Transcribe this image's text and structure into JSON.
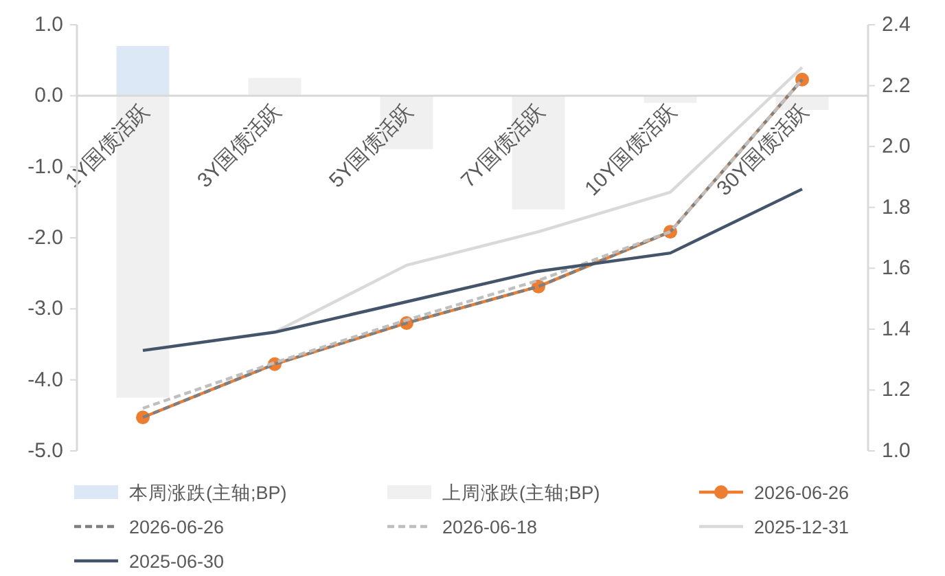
{
  "chart_data": {
    "type": "bar",
    "categories": [
      "1Y国债活跃",
      "3Y国债活跃",
      "5Y国债活跃",
      "7Y国债活跃",
      "10Y国债活跃",
      "30Y国债活跃"
    ],
    "ylim": [
      -5,
      1
    ],
    "yticks": [
      {
        "value": -5,
        "label": "-5.0"
      },
      {
        "value": -4,
        "label": "-4.0"
      },
      {
        "value": -3,
        "label": "-3.0"
      },
      {
        "value": -2,
        "label": "-2.0"
      },
      {
        "value": -1,
        "label": "-1.0"
      },
      {
        "value": 0,
        "label": "0.0"
      },
      {
        "value": 1,
        "label": "1.0"
      }
    ],
    "y2lim": [
      1,
      2.4
    ],
    "y2ticks": [
      {
        "value": 1,
        "label": "1.0"
      },
      {
        "value": 1.2,
        "label": "1.2"
      },
      {
        "value": 1.4,
        "label": "1.4"
      },
      {
        "value": 1.6,
        "label": "1.6"
      },
      {
        "value": 1.8,
        "label": "1.8"
      },
      {
        "value": 2,
        "label": "2.0"
      },
      {
        "value": 2.2,
        "label": "2.2"
      },
      {
        "value": 2.4,
        "label": "2.4"
      }
    ],
    "grid": false,
    "legend": "bottom",
    "series": [
      {
        "name": "本周涨跌(主轴;BP)",
        "color": "#dce8f5",
        "values": [
          0.7,
          0,
          0,
          0,
          0,
          0
        ]
      },
      {
        "name": "上周涨跌(主轴;BP)",
        "color": "#f0f0f0",
        "values": [
          -4.25,
          0.25,
          -0.75,
          -1.6,
          -0.1,
          -0.2
        ]
      },
      {
        "name": "2026-06-26",
        "type": "line",
        "axis": "y2",
        "color": "#ed7d31",
        "line_style": "solid",
        "marker": "circle",
        "values": [
          1.11,
          1.285,
          1.42,
          1.54,
          1.72,
          2.22
        ]
      },
      {
        "name": "2026-06-26",
        "type": "line",
        "axis": "y2",
        "color": "#7f7f7f",
        "line_style": "dashed",
        "marker": "none",
        "values": [
          1.11,
          1.285,
          1.42,
          1.54,
          1.72,
          2.22
        ]
      },
      {
        "name": "2026-06-18",
        "type": "line",
        "axis": "y2",
        "color": "#bfbfbf",
        "line_style": "dashed",
        "marker": "none",
        "values": [
          1.14,
          1.29,
          1.43,
          1.56,
          1.72,
          2.22
        ]
      },
      {
        "name": "2025-12-31",
        "type": "line",
        "axis": "y2",
        "color": "#d9d9d9",
        "line_style": "solid",
        "marker": "none",
        "values": [
          null,
          1.39,
          1.61,
          1.72,
          1.85,
          2.26
        ]
      },
      {
        "name": "2025-06-30",
        "type": "line",
        "axis": "y2",
        "color": "#44546a",
        "line_style": "solid",
        "marker": "none",
        "values": [
          1.33,
          1.39,
          1.49,
          1.59,
          1.65,
          1.86
        ]
      }
    ]
  }
}
